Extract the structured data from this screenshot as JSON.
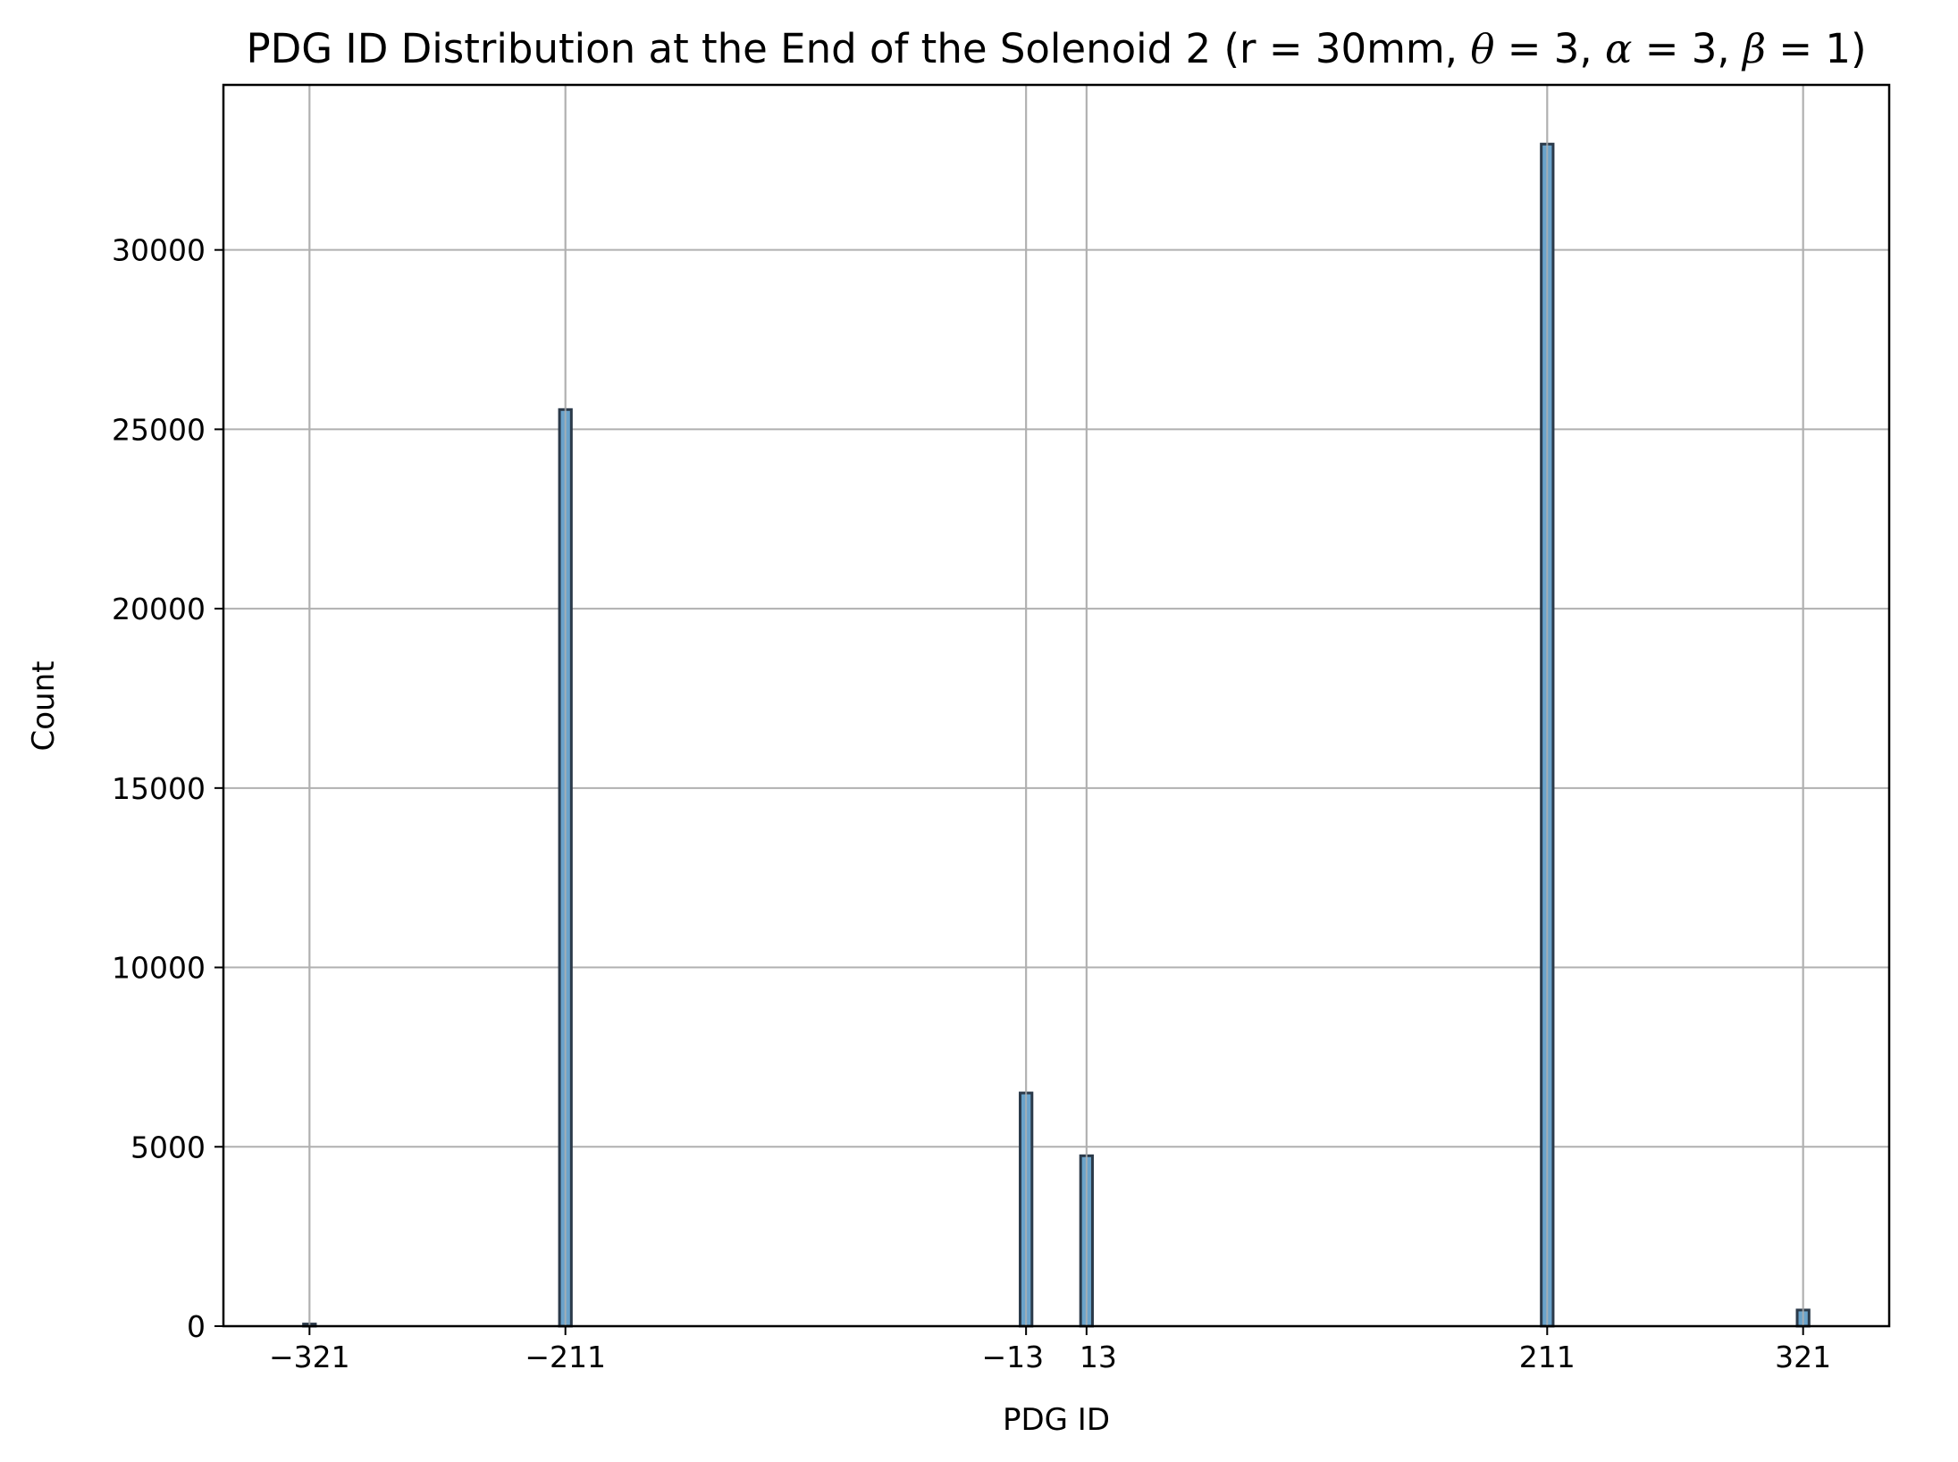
{
  "chart_data": {
    "type": "bar",
    "title": "PDG ID Distribution at the End of the Solenoid 2 (r = 30mm, θ = 3, α = 3, β = 1)",
    "title_parts": {
      "prefix": "PDG ID Distribution at the End of the Solenoid 2 (r = 30mm, ",
      "theta": "θ",
      "theta_eq": " = 3, ",
      "alpha": "α",
      "alpha_eq": " = 3, ",
      "beta": "β",
      "beta_eq": " = 1)"
    },
    "xlabel": "PDG ID",
    "ylabel": "Count",
    "x": [
      -321,
      -211,
      -13,
      13,
      211,
      321
    ],
    "x_tick_labels": [
      "−321",
      "−211",
      "−13",
      "13",
      "211",
      "321"
    ],
    "values": [
      60,
      25550,
      6500,
      4750,
      32950,
      450
    ],
    "xlim": [
      -358,
      358
    ],
    "ylim": [
      0,
      34600
    ],
    "y_ticks": [
      0,
      5000,
      10000,
      15000,
      20000,
      25000,
      30000
    ],
    "y_tick_labels": [
      "0",
      "5000",
      "10000",
      "15000",
      "20000",
      "25000",
      "30000"
    ],
    "bar_width": 5.1,
    "grid": true,
    "colors": {
      "bar_fill": "#6aa3cb",
      "bar_edge": "#2b3a4a",
      "grid": "#b0b0b0"
    }
  }
}
